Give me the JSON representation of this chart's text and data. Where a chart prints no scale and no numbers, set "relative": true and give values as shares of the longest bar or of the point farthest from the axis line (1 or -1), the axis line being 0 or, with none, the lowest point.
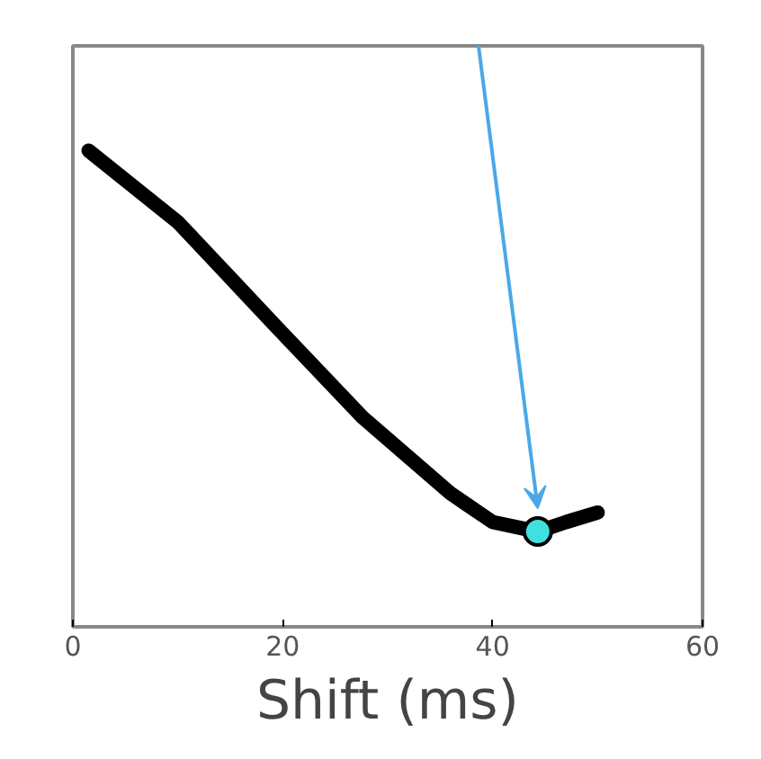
{
  "chart_data": {
    "type": "line",
    "xlabel": "Shift (ms)",
    "relative": true,
    "xlim": [
      0,
      60
    ],
    "xticks": [
      0,
      20,
      40,
      60
    ],
    "tick_labels": "x",
    "grid": false,
    "series": [
      {
        "color": "#000000",
        "x": [
          1.5,
          10,
          19.4,
          27.6,
          36,
          40,
          44.3,
          47,
          50
        ],
        "values": [
          1,
          0.85,
          0.63,
          0.44,
          0.28,
          0.22,
          0.2,
          0.22,
          0.24
        ]
      },
      {
        "type": "scatter",
        "color": "#40e0e0",
        "x": [
          44.3
        ],
        "values": [
          0.2
        ],
        "marker": "circle"
      }
    ]
  }
}
